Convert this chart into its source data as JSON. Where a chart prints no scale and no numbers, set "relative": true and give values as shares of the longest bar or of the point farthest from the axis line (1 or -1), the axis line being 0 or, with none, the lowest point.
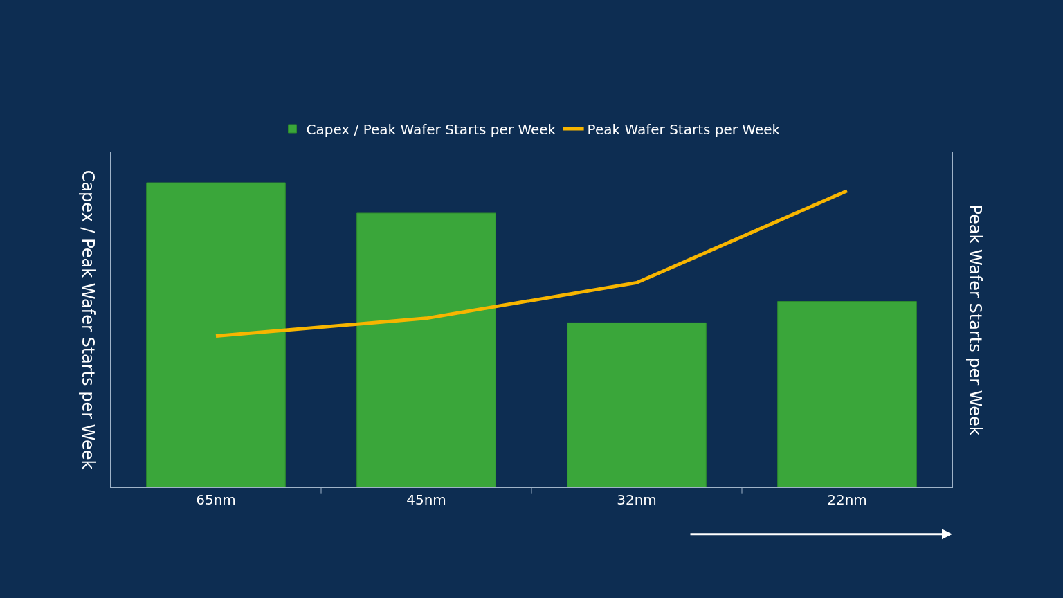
{
  "chart_data": {
    "type": "bar",
    "relative": true,
    "ylabel": "Capex / Peak Wafer Starts per Week",
    "y2label": "Peak Wafer Starts per Week",
    "categories": [
      "65nm",
      "45nm",
      "32nm",
      "22nm"
    ],
    "series": [
      {
        "name": "Capex / Peak Wafer Starts per Week",
        "color": "#3aa63a",
        "values": [
          1,
          0.9,
          0.54,
          0.61
        ]
      },
      {
        "name": "Peak Wafer Starts per Week",
        "type": "line",
        "axis": "y2",
        "color": "#f7b500",
        "marker": "none",
        "values": [
          0.51,
          0.57,
          0.69,
          1
        ]
      }
    ],
    "legend": "top",
    "grid": false
  }
}
